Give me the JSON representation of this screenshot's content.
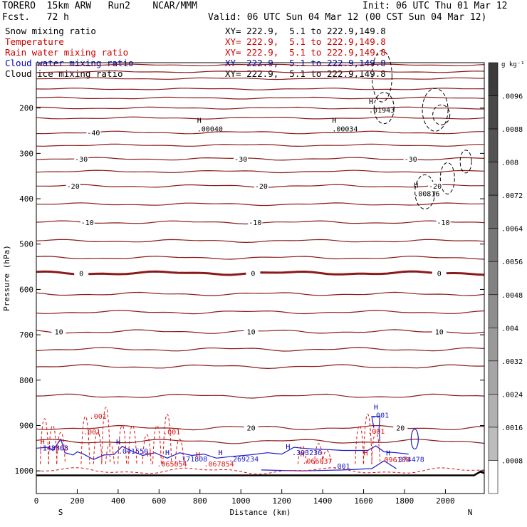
{
  "header": {
    "model": "TORERO  15km ARW   Run2    NCAR/MMM",
    "init": "Init: 06 UTC Thu 01 Mar 12",
    "fcst": "Fcst.   72 h",
    "valid": "Valid: 06 UTC Sun 04 Mar 12 (00 CST Sun 04 Mar 12)"
  },
  "fields": [
    {
      "name": "Snow mixing ratio",
      "xy": "",
      "color": "#000000"
    },
    {
      "name": "Temperature",
      "xy": "XY= 222.9,  5.1 to 222.9,149.8",
      "color": "#cc0000"
    },
    {
      "name": "Rain water mixing ratio",
      "xy": "XY= 222.9,  5.1 to 222.9,149.8",
      "color": "#cc0000"
    },
    {
      "name": "Cloud water mixing ratio",
      "xy": "XY= 222.9,  5.1 to 222.9,149.8",
      "color": "#0000bb"
    },
    {
      "name": "Cloud ice mixing ratio",
      "xy": "XY= 222.9,  5.1 to 222.9,149.8",
      "color": "#000000"
    }
  ],
  "first_xy": "XY= 222.9,  5.1 to 222.9,149.8",
  "chart_data": {
    "type": "cross-section",
    "xlabel": "Distance (km)",
    "ylabel": "Pressure (hPa)",
    "xlim": [
      0,
      2190
    ],
    "ylim": [
      1050,
      100
    ],
    "x_ticks": [
      0,
      200,
      400,
      600,
      800,
      1000,
      1200,
      1400,
      1600,
      1800,
      2000
    ],
    "y_ticks": [
      200,
      300,
      400,
      500,
      600,
      700,
      800,
      900,
      1000
    ],
    "endpoints": {
      "left": "S",
      "right": "N"
    },
    "temperature_contours": [
      {
        "value": -40,
        "pressure": 254,
        "labels_km": [
          280
        ]
      },
      {
        "value": -30,
        "pressure": 312,
        "labels_km": [
          220,
          1000,
          1830
        ]
      },
      {
        "value": -20,
        "pressure": 372,
        "labels_km": [
          180,
          1100,
          1950
        ]
      },
      {
        "value": -10,
        "pressure": 452,
        "labels_km": [
          250,
          1070,
          1990
        ]
      },
      {
        "value": 0,
        "pressure": 564,
        "labels_km": [
          220,
          1060,
          1970
        ]
      },
      {
        "value": 10,
        "pressure": 693,
        "labels_km": [
          110,
          1050,
          1970
        ]
      },
      {
        "value": 20,
        "pressure": 905,
        "labels_km": [
          1050,
          1780
        ]
      }
    ],
    "other_isotherm_pressures": [
      105,
      120,
      135,
      158,
      178,
      200,
      222,
      282,
      340,
      412,
      493,
      530,
      610,
      650,
      732,
      770,
      835,
      935
    ],
    "cloud_ice_maxima": [
      {
        "km": 800,
        "pressure": 245,
        "label": "H",
        "value": ".00040"
      },
      {
        "km": 1460,
        "pressure": 245,
        "label": "H",
        "value": ".00034"
      },
      {
        "km": 1640,
        "pressure": 204,
        "label": "H",
        "value": ".01943"
      },
      {
        "km": 1860,
        "pressure": 388,
        "label": "H",
        "value": ".00816"
      }
    ],
    "rain_labels": [
      {
        "km": 260,
        "pressure": 885,
        "value": ".001"
      },
      {
        "km": 230,
        "pressure": 920,
        "value": ".001"
      },
      {
        "km": 620,
        "pressure": 920,
        "value": ".001"
      },
      {
        "km": 1620,
        "pressure": 918,
        "value": ".001"
      },
      {
        "km": 10,
        "pressure": 955,
        "value": ".143803"
      },
      {
        "km": 590,
        "pressure": 990,
        "value": ".065054"
      },
      {
        "km": 820,
        "pressure": 990,
        "value": ".067854"
      },
      {
        "km": 1300,
        "pressure": 984,
        "value": ".066037"
      },
      {
        "km": 1680,
        "pressure": 981,
        "value": ".096100"
      }
    ],
    "cloud_water_labels": [
      {
        "km": 10,
        "pressure": 955,
        "value": ".148308"
      },
      {
        "km": 400,
        "pressure": 962,
        "value": ".041550"
      },
      {
        "km": 690,
        "pressure": 979,
        "value": ".171808"
      },
      {
        "km": 940,
        "pressure": 979,
        "value": ".269234"
      },
      {
        "km": 1250,
        "pressure": 965,
        "value": ".393236"
      },
      {
        "km": 1450,
        "pressure": 995,
        "value": ".001"
      },
      {
        "km": 1640,
        "pressure": 883,
        "value": ".001"
      },
      {
        "km": 1750,
        "pressure": 980,
        "value": ".074478"
      }
    ],
    "maxima_markers": [
      {
        "km": 20,
        "pressure": 941,
        "color": "#cc0000"
      },
      {
        "km": 390,
        "pressure": 942,
        "color": "#0000bb"
      },
      {
        "km": 540,
        "pressure": 968,
        "color": "#cc0000"
      },
      {
        "km": 630,
        "pressure": 965,
        "color": "#0000bb"
      },
      {
        "km": 780,
        "pressure": 970,
        "color": "#cc0000"
      },
      {
        "km": 890,
        "pressure": 965,
        "color": "#0000bb"
      },
      {
        "km": 1220,
        "pressure": 952,
        "color": "#0000bb"
      },
      {
        "km": 1290,
        "pressure": 968,
        "color": "#cc0000"
      },
      {
        "km": 1600,
        "pressure": 966,
        "color": "#cc0000"
      },
      {
        "km": 1710,
        "pressure": 966,
        "color": "#0000bb"
      },
      {
        "km": 1650,
        "pressure": 865,
        "color": "#0000bb"
      }
    ],
    "colorbar": {
      "unit": "g kg⁻¹",
      "ticks": [
        ".0096",
        ".0088",
        ".008",
        ".0072",
        ".0064",
        ".0056",
        ".0048",
        ".004",
        ".0032",
        ".0024",
        ".0016",
        ".0008"
      ]
    },
    "colors": {
      "temperature": "#8b1a1a",
      "rain": "#dd1111",
      "cloud_water": "#1a1acc",
      "cloud_ice": "#000000",
      "ground": "#000000"
    }
  }
}
